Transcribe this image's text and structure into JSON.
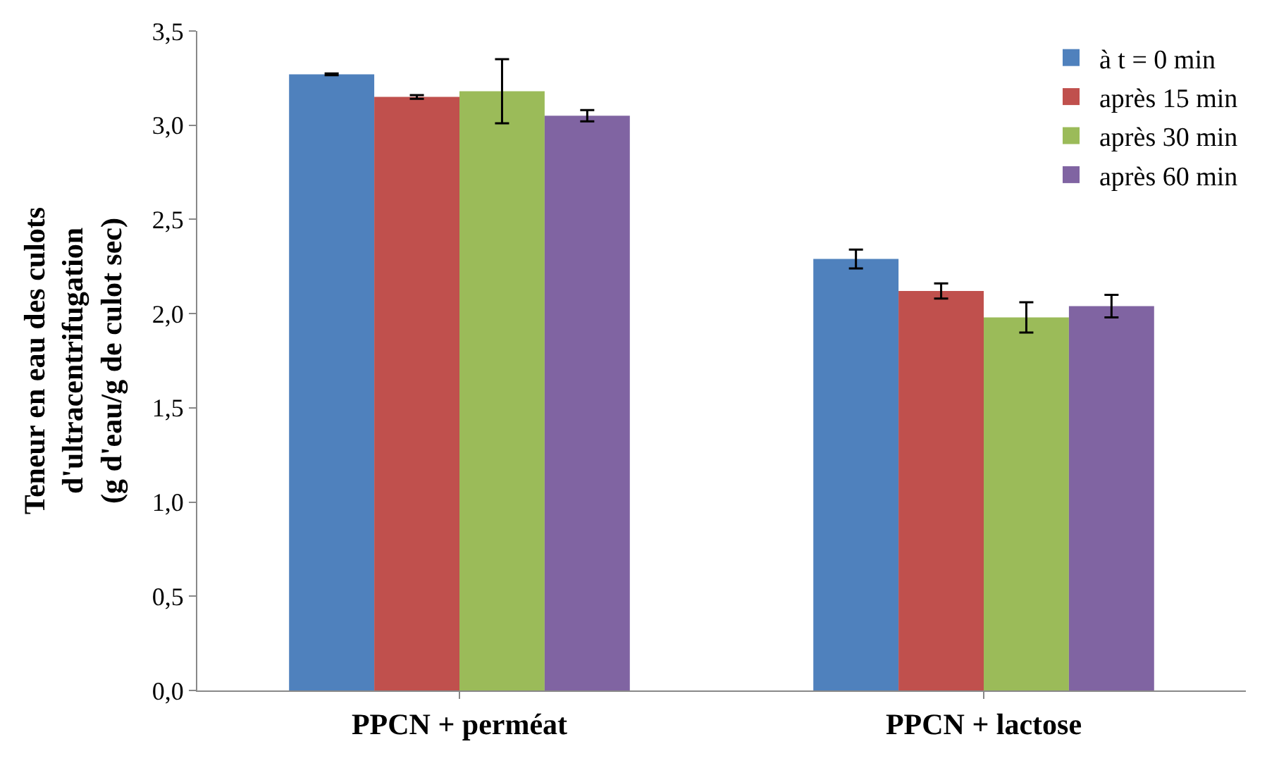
{
  "chart_data": {
    "type": "bar",
    "ylabel": "Teneur en eau des culots\nd'ultracentrifugation\n(g d'eau/g de culot sec)",
    "categories": [
      "PPCN + perméat",
      "PPCN + lactose"
    ],
    "series": [
      {
        "name": "à t = 0 min",
        "color": "#4f81bd",
        "values": [
          3.27,
          2.29
        ],
        "errors": [
          0.005,
          0.05
        ]
      },
      {
        "name": "après 15 min",
        "color": "#c0504d",
        "values": [
          3.15,
          2.12
        ],
        "errors": [
          0.01,
          0.04
        ]
      },
      {
        "name": "après 30 min",
        "color": "#9bbb59",
        "values": [
          3.18,
          1.98
        ],
        "errors": [
          0.17,
          0.08
        ]
      },
      {
        "name": "après 60 min",
        "color": "#8064a2",
        "values": [
          3.05,
          2.04
        ],
        "errors": [
          0.03,
          0.06
        ]
      }
    ],
    "ylim": [
      0,
      3.5
    ],
    "yticks": [
      {
        "value": 0,
        "label": "0,0"
      },
      {
        "value": 0.5,
        "label": "0,5"
      },
      {
        "value": 1,
        "label": "1,0"
      },
      {
        "value": 1.5,
        "label": "1,5"
      },
      {
        "value": 2,
        "label": "2,0"
      },
      {
        "value": 2.5,
        "label": "2,5"
      },
      {
        "value": 3,
        "label": "3,0"
      },
      {
        "value": 3.5,
        "label": "3,5"
      }
    ],
    "legend": "top right"
  }
}
